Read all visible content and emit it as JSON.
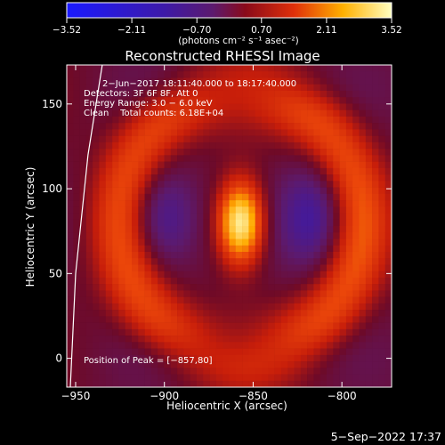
{
  "chart_data": {
    "type": "heatmap",
    "title": "Reconstructed RHESSI Image",
    "xlabel": "Heliocentric X (arcsec)",
    "ylabel": "Heliocentric Y (arcsec)",
    "xlim": [
      -955,
      -772
    ],
    "ylim": [
      -17,
      173
    ],
    "x_ticks": [
      -950,
      -900,
      -850,
      -800
    ],
    "x_tick_labels": [
      "−950",
      "−900",
      "−850",
      "−800"
    ],
    "y_ticks": [
      0,
      50,
      100,
      150
    ],
    "y_tick_labels": [
      "0",
      "50",
      "100",
      "150"
    ],
    "colorbar": {
      "ticks": [
        -3.52,
        -2.11,
        -0.7,
        0.7,
        2.11,
        3.52
      ],
      "tick_labels": [
        "−3.52",
        "−2.11",
        "−0.70",
        "0.70",
        "2.11",
        "3.52"
      ],
      "unit_label": "(photons cm⁻² s⁻¹ asec⁻²)",
      "colormap": "hot-with-blue-negatives"
    },
    "annotations": [
      "2−Jun−2017 18:11:40.000 to 18:17:40.000",
      "Detectors: 3F 6F 8F, Att 0",
      "Energy Range: 3.0 − 6.0 keV",
      "Clean    Total counts: 6.18E+04"
    ],
    "peak_label": "Position of Peak = [−857,80]",
    "peak": {
      "x": -857,
      "y": 80,
      "value": 3.52
    },
    "features": [
      {
        "kind": "core",
        "x": -857,
        "y": 80,
        "sx": 9,
        "sy": 17,
        "amp": 3.4
      },
      {
        "kind": "ring",
        "x": -857,
        "y": 80,
        "rx": 67,
        "ry": 78,
        "width": 12,
        "amp": 1.6
      },
      {
        "kind": "hole",
        "x": -902,
        "y": 83,
        "sx": 14,
        "sy": 22,
        "amp": -1.3
      },
      {
        "kind": "hole",
        "x": -815,
        "y": 83,
        "sx": 14,
        "sy": 22,
        "amp": -1.3
      },
      {
        "kind": "hole",
        "x": -857,
        "y": 158,
        "sx": 30,
        "sy": 12,
        "amp": -1.0
      },
      {
        "kind": "hole",
        "x": -857,
        "y": 5,
        "sx": 30,
        "sy": 12,
        "amp": -1.0
      }
    ],
    "limb_line": [
      [
        -953,
        -17
      ],
      [
        -950,
        50
      ],
      [
        -943,
        120
      ],
      [
        -935,
        173
      ]
    ],
    "grid": false
  },
  "footer": {
    "timestamp": "5−Sep−2022 17:37"
  }
}
